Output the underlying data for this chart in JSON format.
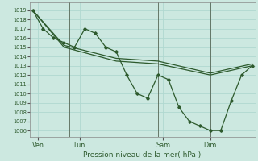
{
  "xlabel": "Pression niveau de la mer( hPa )",
  "background_color": "#cce8e0",
  "grid_color": "#b0d8d0",
  "line_color": "#2d5a2d",
  "yticks": [
    1006,
    1007,
    1008,
    1009,
    1010,
    1011,
    1012,
    1013,
    1014,
    1015,
    1016,
    1017,
    1018,
    1019
  ],
  "ylim": [
    1005.3,
    1019.8
  ],
  "xlim": [
    -0.3,
    21.3
  ],
  "day_labels": [
    "Ven",
    "Lun",
    "Sam",
    "Dim"
  ],
  "day_positions": [
    0.5,
    4.5,
    12.5,
    17.0
  ],
  "vline_positions": [
    3.5,
    12.0,
    17.0
  ],
  "series1_x": [
    0,
    1,
    2,
    3,
    4,
    5,
    6,
    7,
    8,
    9,
    10,
    11,
    12,
    13,
    14,
    15,
    16,
    17,
    18,
    19,
    20,
    21
  ],
  "series1_y": [
    1019,
    1017,
    1016,
    1015.5,
    1015,
    1017,
    1016.5,
    1015,
    1014.5,
    1012,
    1010,
    1009.5,
    1012,
    1011.5,
    1008.5,
    1007,
    1006.5,
    1006,
    1006,
    1009.2,
    1012,
    1013
  ],
  "series2_x": [
    0,
    3,
    8,
    12,
    17,
    21
  ],
  "series2_y": [
    1019,
    1015.2,
    1013.8,
    1013.5,
    1012.2,
    1013.2
  ],
  "series3_x": [
    0,
    3,
    8,
    12,
    17,
    21
  ],
  "series3_y": [
    1019,
    1015.0,
    1013.5,
    1013.2,
    1012.0,
    1013.0
  ]
}
